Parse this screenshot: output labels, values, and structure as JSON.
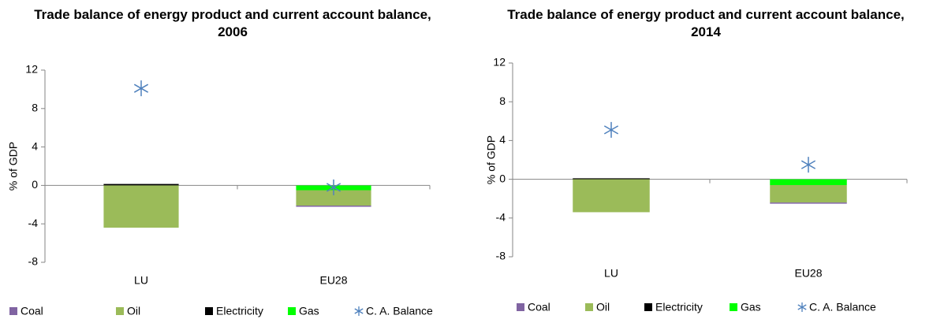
{
  "chart_data": [
    {
      "type": "bar",
      "stacked": true,
      "title": "Trade balance of energy product and current  account balance, 2006",
      "y_label": "% of GDP",
      "categories": [
        "LU",
        "EU28"
      ],
      "series": [
        {
          "name": "Coal",
          "color": "#8064a2",
          "values": [
            0,
            -0.05
          ]
        },
        {
          "name": "Oil",
          "color": "#9bbb59",
          "values": [
            -4.4,
            -1.6
          ]
        },
        {
          "name": "Electricity",
          "color": "#000000",
          "values": [
            0.15,
            0
          ]
        },
        {
          "name": "Gas",
          "color": "#00ff00",
          "values": [
            0,
            -0.5
          ]
        },
        {
          "name": "C. A. Balance",
          "color": "#4f81bd",
          "type": "scatter",
          "values": [
            10.1,
            -0.2
          ]
        }
      ],
      "ylim": [
        -8,
        12
      ],
      "yticks": [
        -8,
        -4,
        0,
        4,
        8,
        12
      ],
      "grid": false,
      "legend": "bottom"
    },
    {
      "type": "bar",
      "stacked": true,
      "title": "Trade balance of energy product and current account balance, 2014",
      "y_label": "% of GDP",
      "categories": [
        "LU",
        "EU28"
      ],
      "series": [
        {
          "name": "Coal",
          "color": "#8064a2",
          "values": [
            0,
            -0.05
          ]
        },
        {
          "name": "Oil",
          "color": "#9bbb59",
          "values": [
            -3.4,
            -1.8
          ]
        },
        {
          "name": "Electricity",
          "color": "#000000",
          "values": [
            0.1,
            0
          ]
        },
        {
          "name": "Gas",
          "color": "#00ff00",
          "values": [
            0,
            -0.6
          ]
        },
        {
          "name": "C. A. Balance",
          "color": "#4f81bd",
          "type": "scatter",
          "values": [
            5.1,
            1.5
          ]
        }
      ],
      "ylim": [
        -8,
        12
      ],
      "yticks": [
        -8,
        -4,
        0,
        4,
        8,
        12
      ],
      "grid": false,
      "legend": "bottom"
    }
  ]
}
